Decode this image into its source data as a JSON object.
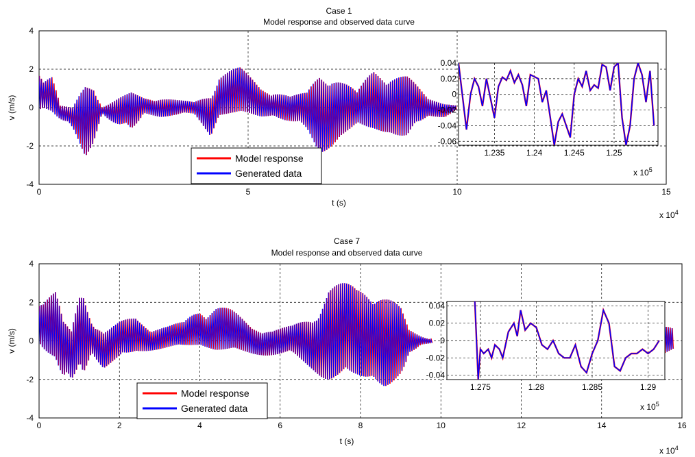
{
  "chart_data": [
    {
      "type": "line",
      "title": "Case 1",
      "subtitle": "Model response and observed data curve",
      "xlabel": "t (s)",
      "ylabel": "v (m/s)",
      "x_exponent": "x 10",
      "x_exponent_power": "4",
      "xlim": [
        0,
        15
      ],
      "ylim": [
        -4,
        4
      ],
      "xticks": [
        "0",
        "5",
        "10",
        "15"
      ],
      "yticks": [
        "-4",
        "-2",
        "0",
        "2",
        "4"
      ],
      "grid": true,
      "legend_position": "lower-center",
      "series": [
        {
          "name": "Model response",
          "color": "#ff0000"
        },
        {
          "name": "Generated data",
          "color": "#0000ff"
        }
      ],
      "envelope": {
        "x": [
          0,
          0.1,
          0.3,
          0.5,
          0.8,
          1.1,
          1.3,
          1.5,
          1.9,
          2.2,
          2.5,
          2.9,
          3.3,
          3.7,
          4.1,
          4.3,
          4.8,
          5.3,
          5.6,
          6.0,
          6.4,
          6.7,
          7.0,
          7.2,
          7.6,
          8.0,
          8.4,
          8.8,
          9.3,
          9.7,
          10.0
        ],
        "upper": [
          3.0,
          2.0,
          1.9,
          0.1,
          0.0,
          1.3,
          1.4,
          0.0,
          0.5,
          0.8,
          0.6,
          0.6,
          0.4,
          0.3,
          0.8,
          2.1,
          2.1,
          1.2,
          1.1,
          0.6,
          0.8,
          2.0,
          2.0,
          1.6,
          0.8,
          2.2,
          2.1,
          1.7,
          0.5,
          0.3,
          0.1
        ],
        "lower": [
          -0.1,
          0.0,
          -0.2,
          -0.8,
          -1.6,
          -2.8,
          -1.8,
          -0.3,
          -1.2,
          -1.6,
          -0.3,
          -0.5,
          -0.5,
          -0.4,
          -1.5,
          -0.4,
          -0.3,
          -0.5,
          -0.4,
          -0.9,
          -1.5,
          -2.5,
          -2.0,
          -1.6,
          -1.4,
          -1.2,
          -1.3,
          -1.9,
          -0.5,
          -0.5,
          -0.1
        ]
      },
      "tail": {
        "x": [
          14.1,
          14.2,
          14.3,
          14.4
        ],
        "upper": [
          0.6,
          0.5,
          0.6,
          0.3
        ],
        "lower": [
          -0.2,
          -0.1,
          -0.3,
          -0.1
        ]
      },
      "inset": {
        "xlim": [
          1.2305,
          1.2555
        ],
        "ylim": [
          -0.065,
          0.04
        ],
        "x_exponent": "x 10",
        "x_exponent_power": "5",
        "xticks": [
          1.235,
          1.24,
          1.245,
          1.25
        ],
        "xtick_labels": [
          "1.235",
          "1.24",
          "1.245",
          "1.25"
        ],
        "yticks": [
          0.04,
          0.02,
          0,
          -0.02,
          -0.04,
          -0.06
        ],
        "ytick_labels": [
          "0.04",
          "0.02",
          "0",
          "-0.02",
          "-0.04",
          "-0.06"
        ],
        "x": [
          1.2305,
          1.2315,
          1.232,
          1.2325,
          1.233,
          1.2335,
          1.234,
          1.2345,
          1.235,
          1.2355,
          1.236,
          1.2365,
          1.237,
          1.2375,
          1.238,
          1.2385,
          1.239,
          1.2395,
          1.2405,
          1.241,
          1.2415,
          1.242,
          1.2425,
          1.243,
          1.2435,
          1.244,
          1.2445,
          1.245,
          1.2455,
          1.246,
          1.2465,
          1.247,
          1.2475,
          1.248,
          1.2485,
          1.249,
          1.2495,
          1.25,
          1.2505,
          1.251,
          1.2515,
          1.252,
          1.2525,
          1.253,
          1.2535,
          1.254,
          1.2545,
          1.255
        ],
        "y": [
          0.04,
          -0.045,
          0.0,
          0.02,
          0.01,
          -0.015,
          0.02,
          -0.005,
          -0.03,
          0.01,
          0.022,
          0.018,
          0.03,
          0.015,
          0.025,
          0.012,
          -0.015,
          0.025,
          0.02,
          -0.01,
          0.005,
          -0.03,
          -0.065,
          -0.035,
          -0.025,
          -0.04,
          -0.055,
          0.0,
          0.02,
          0.01,
          0.03,
          0.005,
          0.012,
          0.008,
          0.038,
          0.035,
          0.005,
          0.035,
          0.04,
          -0.03,
          -0.065,
          -0.04,
          0.02,
          0.04,
          0.025,
          -0.01,
          0.03,
          -0.04
        ]
      }
    },
    {
      "type": "line",
      "title": "Case 7",
      "subtitle": "Model response and observed data curve",
      "xlabel": "t (s)",
      "ylabel": "v (m/s)",
      "x_exponent": "x 10",
      "x_exponent_power": "4",
      "xlim": [
        0,
        16
      ],
      "ylim": [
        -4,
        4
      ],
      "xticks": [
        "0",
        "2",
        "4",
        "6",
        "8",
        "10",
        "12",
        "14",
        "16"
      ],
      "yticks": [
        "-4",
        "-2",
        "0",
        "2",
        "4"
      ],
      "grid": true,
      "legend_position": "lower-center",
      "series": [
        {
          "name": "Model response",
          "color": "#ff0000"
        },
        {
          "name": "Generated data",
          "color": "#0000ff"
        }
      ],
      "envelope": {
        "x": [
          0,
          0.1,
          0.4,
          0.6,
          0.8,
          1.0,
          1.1,
          1.3,
          1.6,
          2.0,
          2.4,
          2.8,
          3.2,
          3.6,
          4.0,
          4.4,
          4.8,
          5.3,
          5.8,
          6.3,
          6.8,
          7.2,
          7.6,
          7.9,
          8.3,
          8.6,
          9.0,
          9.2,
          9.5,
          9.8
        ],
        "upper": [
          3.3,
          2.9,
          2.8,
          1.0,
          0.5,
          2.5,
          2.7,
          1.4,
          0.5,
          1.0,
          1.3,
          0.8,
          0.8,
          1.0,
          2.0,
          2.1,
          1.6,
          0.8,
          0.6,
          0.8,
          1.4,
          3.1,
          3.0,
          2.9,
          3.4,
          2.6,
          1.7,
          0.6,
          0.3,
          0.1
        ],
        "lower": [
          -0.1,
          -0.4,
          -1.0,
          -2.8,
          -3.0,
          -1.3,
          -1.8,
          -0.6,
          -1.5,
          -1.2,
          -0.6,
          -0.5,
          -0.4,
          -0.3,
          -0.2,
          -0.5,
          -0.6,
          -0.7,
          -0.8,
          -0.9,
          -1.5,
          -2.2,
          -2.5,
          -2.1,
          -1.8,
          -2.6,
          -3.0,
          -0.8,
          -0.2,
          -0.1
        ]
      },
      "tail": {
        "x": [
          15.4,
          15.5,
          15.6,
          15.8
        ],
        "upper": [
          2.5,
          1.5,
          1.3,
          0.8
        ],
        "lower": [
          -0.4,
          -0.7,
          -0.6,
          -0.4
        ]
      },
      "inset": {
        "xlim": [
          1.272,
          1.2915
        ],
        "ylim": [
          -0.045,
          0.045
        ],
        "x_exponent": "x 10",
        "x_exponent_power": "5",
        "xticks": [
          1.275,
          1.28,
          1.285,
          1.29
        ],
        "xtick_labels": [
          "1.275",
          "1.28",
          "1.285",
          "1.29"
        ],
        "yticks": [
          0.04,
          0.02,
          0,
          -0.02,
          -0.04
        ],
        "ytick_labels": [
          "0.04",
          "0.02",
          "0",
          "-0.02",
          "-0.04"
        ],
        "x": [
          1.2745,
          1.2748,
          1.275,
          1.2753,
          1.2757,
          1.276,
          1.2763,
          1.2767,
          1.277,
          1.2775,
          1.278,
          1.2783,
          1.2786,
          1.279,
          1.2795,
          1.28,
          1.2805,
          1.281,
          1.2815,
          1.282,
          1.2825,
          1.283,
          1.2835,
          1.284,
          1.2845,
          1.285,
          1.2855,
          1.286,
          1.2865,
          1.287,
          1.2875,
          1.288,
          1.2885,
          1.289,
          1.2895,
          1.29,
          1.2905,
          1.291
        ],
        "y": [
          0.045,
          -0.045,
          -0.01,
          -0.015,
          -0.01,
          -0.02,
          -0.005,
          -0.01,
          -0.02,
          0.01,
          0.02,
          0.005,
          0.035,
          0.012,
          0.02,
          0.015,
          -0.005,
          -0.01,
          0.0,
          -0.015,
          -0.02,
          -0.02,
          -0.005,
          -0.03,
          -0.037,
          -0.015,
          0.0,
          0.035,
          0.02,
          -0.03,
          -0.035,
          -0.02,
          -0.015,
          -0.015,
          -0.01,
          -0.015,
          -0.01,
          0.0
        ]
      }
    }
  ]
}
